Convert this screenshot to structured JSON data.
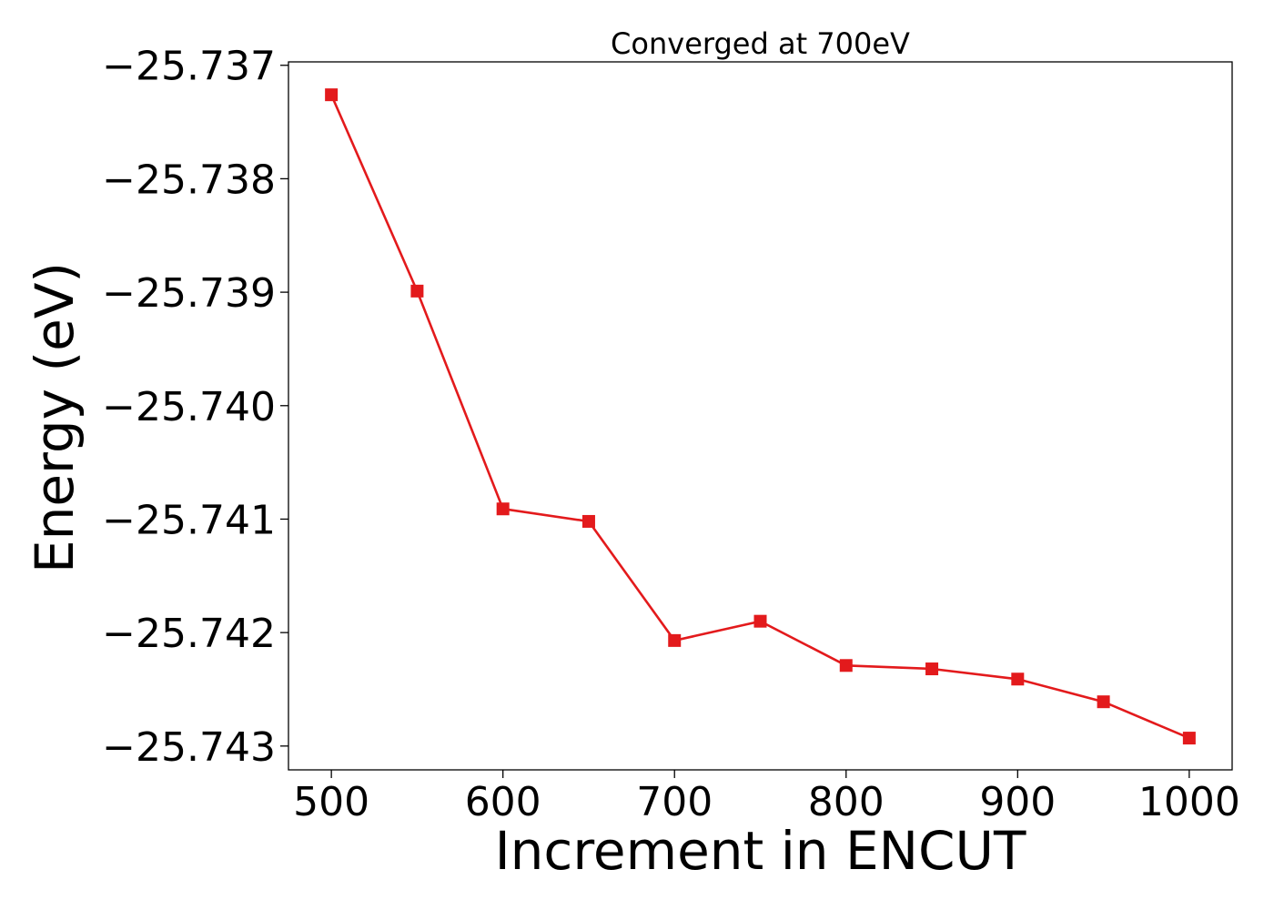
{
  "chart_data": {
    "type": "line",
    "title": "Converged at 700eV",
    "xlabel": "Increment in ENCUT",
    "ylabel": "Energy (eV)",
    "xlim": [
      475,
      1025
    ],
    "ylim": [
      -25.74321,
      -25.73697
    ],
    "xticks": [
      500,
      600,
      700,
      800,
      900,
      1000
    ],
    "xtick_labels": [
      "500",
      "600",
      "700",
      "800",
      "900",
      "1000"
    ],
    "yticks": [
      -25.737,
      -25.738,
      -25.739,
      -25.74,
      -25.741,
      -25.742,
      -25.743
    ],
    "ytick_labels": [
      "−25.737",
      "−25.738",
      "−25.739",
      "−25.740",
      "−25.741",
      "−25.742",
      "−25.743"
    ],
    "grid": false,
    "series": [
      {
        "color": "#e31a1c",
        "marker": "square",
        "x": [
          500,
          550,
          600,
          650,
          700,
          750,
          800,
          850,
          900,
          950,
          1000
        ],
        "y": [
          -25.73726,
          -25.73899,
          -25.74091,
          -25.74102,
          -25.74207,
          -25.7419,
          -25.74229,
          -25.74232,
          -25.74241,
          -25.74261,
          -25.74293
        ]
      }
    ]
  }
}
